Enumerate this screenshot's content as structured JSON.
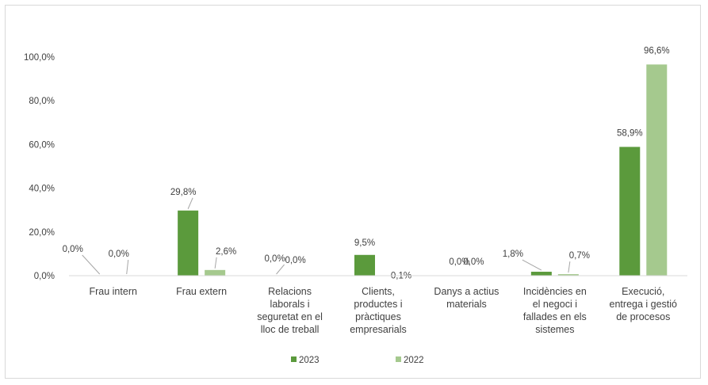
{
  "chart_data": {
    "type": "bar",
    "categories": [
      [
        "Frau intern"
      ],
      [
        "Frau extern"
      ],
      [
        "Relacions",
        "laborals i",
        "seguretat en el",
        "lloc de treball"
      ],
      [
        "Clients,",
        "productes i",
        "pràctiques",
        "empresarials"
      ],
      [
        "Danys a actius",
        "materials"
      ],
      [
        "Incidències en",
        "el negoci i",
        "fallades en els",
        "sistemes"
      ],
      [
        "Execució,",
        "entrega i gestió",
        "de procesos"
      ]
    ],
    "series": [
      {
        "name": "2023",
        "color": "#5b9a3c",
        "values": [
          0.0,
          29.8,
          0.0,
          9.5,
          0.0,
          1.8,
          58.9
        ],
        "labels": [
          "0,0%",
          "29,8%",
          "0,0%",
          "9,5%",
          "0,0%",
          "1,8%",
          "58,9%"
        ]
      },
      {
        "name": "2022",
        "color": "#a5c98e",
        "values": [
          0.0,
          2.6,
          0.0,
          0.1,
          0.0,
          0.7,
          96.6
        ],
        "labels": [
          "0,0%",
          "2,6%",
          "0,0%",
          "0,1%",
          "0,0%",
          "0,7%",
          "96,6%"
        ]
      }
    ],
    "y_ticks": [
      0,
      20,
      40,
      60,
      80,
      100
    ],
    "y_tick_labels": [
      "0,0%",
      "20,0%",
      "40,0%",
      "60,0%",
      "80,0%",
      "100,0%"
    ],
    "ylim": [
      0,
      100
    ],
    "grid": false,
    "legend_position": "bottom",
    "title": "",
    "xlabel": "",
    "ylabel": ""
  }
}
